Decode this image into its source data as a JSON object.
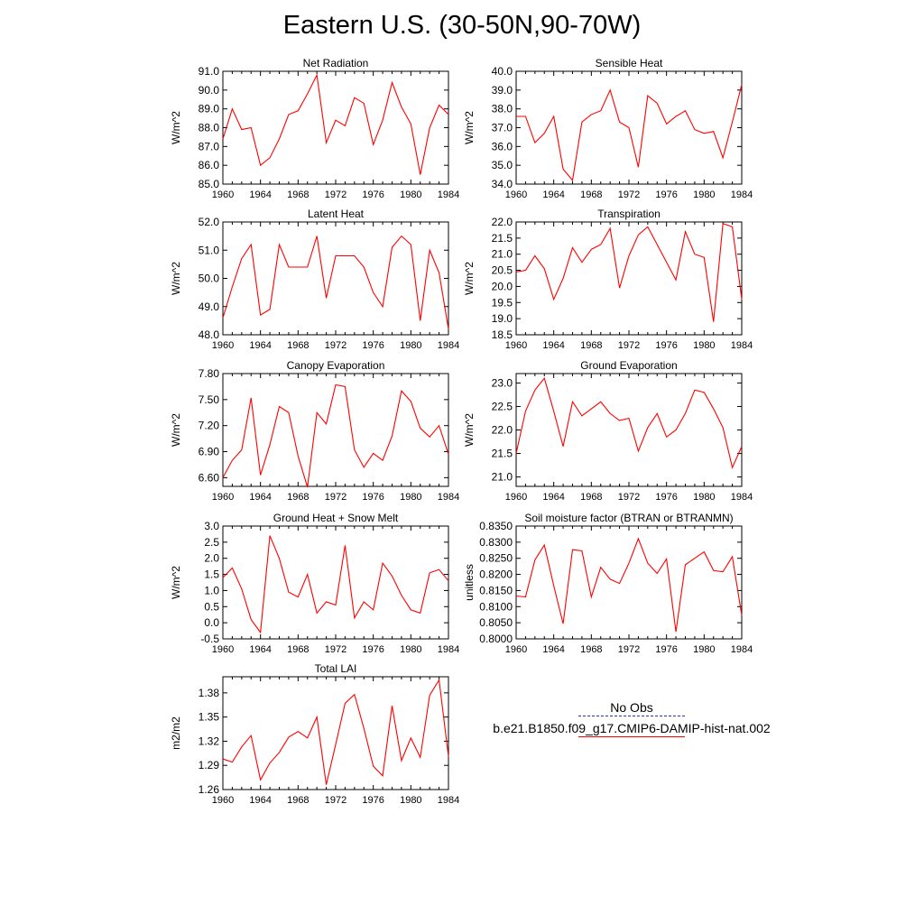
{
  "title": "Eastern U.S. (30-50N,90-70W)",
  "line_color": "#ff0000",
  "obs_color": "#2b2bd8",
  "legend": {
    "obs_label": "No Obs",
    "model_label": "b.e21.B1850.f09_g17.CMIP6-DAMIP-hist-nat.002"
  },
  "chart_data": [
    {
      "type": "line",
      "title": "Net Radiation",
      "ylabel": "W/m^2",
      "xlim": [
        1960,
        1984
      ],
      "ylim": [
        85.0,
        91.0
      ],
      "xticks": [
        "1960",
        "1964",
        "1968",
        "1972",
        "1976",
        "1980",
        "1984"
      ],
      "yticks": [
        "85.0",
        "86.0",
        "87.0",
        "88.0",
        "89.0",
        "90.0",
        "91.0"
      ],
      "series": [
        {
          "values": [
            87.4,
            89.0,
            87.9,
            88.0,
            86.0,
            86.4,
            87.4,
            88.7,
            88.9,
            89.8,
            90.8,
            87.2,
            88.4,
            88.1,
            89.6,
            89.3,
            87.1,
            88.4,
            90.4,
            89.1,
            88.2,
            85.5,
            88.0,
            89.2,
            88.7
          ]
        }
      ]
    },
    {
      "type": "line",
      "title": "Sensible Heat",
      "ylabel": "W/m^2",
      "xlim": [
        1960,
        1984
      ],
      "ylim": [
        34.0,
        40.0
      ],
      "xticks": [
        "1960",
        "1964",
        "1968",
        "1972",
        "1976",
        "1980",
        "1984"
      ],
      "yticks": [
        "34.0",
        "35.0",
        "36.0",
        "37.0",
        "38.0",
        "39.0",
        "40.0"
      ],
      "series": [
        {
          "values": [
            37.6,
            37.6,
            36.2,
            36.7,
            37.6,
            34.8,
            34.2,
            37.3,
            37.7,
            37.9,
            39.0,
            37.3,
            37.0,
            34.9,
            38.7,
            38.3,
            37.2,
            37.6,
            37.9,
            36.9,
            36.7,
            36.8,
            35.4,
            37.3,
            39.3
          ]
        }
      ]
    },
    {
      "type": "line",
      "title": "Latent Heat",
      "ylabel": "W/m^2",
      "xlim": [
        1960,
        1984
      ],
      "ylim": [
        48.0,
        52.0
      ],
      "xticks": [
        "1960",
        "1964",
        "1968",
        "1972",
        "1976",
        "1980",
        "1984"
      ],
      "yticks": [
        "48.0",
        "49.0",
        "50.0",
        "51.0",
        "52.0"
      ],
      "series": [
        {
          "values": [
            48.6,
            49.7,
            50.7,
            51.2,
            48.7,
            48.9,
            51.2,
            50.4,
            50.4,
            50.4,
            51.5,
            49.3,
            50.8,
            50.8,
            50.8,
            50.4,
            49.5,
            49.0,
            51.1,
            51.5,
            51.2,
            48.5,
            51.0,
            50.2,
            48.2
          ]
        }
      ]
    },
    {
      "type": "line",
      "title": "Transpiration",
      "ylabel": "W/m^2",
      "xlim": [
        1960,
        1984
      ],
      "ylim": [
        18.5,
        22.0
      ],
      "xticks": [
        "1960",
        "1964",
        "1968",
        "1972",
        "1976",
        "1980",
        "1984"
      ],
      "yticks": [
        "18.5",
        "19.0",
        "19.5",
        "20.0",
        "20.5",
        "21.0",
        "21.5",
        "22.0"
      ],
      "series": [
        {
          "values": [
            20.45,
            20.5,
            20.95,
            20.55,
            19.6,
            20.25,
            21.2,
            20.75,
            21.15,
            21.3,
            21.8,
            19.95,
            20.95,
            21.6,
            21.85,
            21.3,
            20.75,
            20.2,
            21.7,
            21.0,
            20.9,
            18.9,
            21.95,
            21.85,
            19.6
          ]
        }
      ]
    },
    {
      "type": "line",
      "title": "Canopy Evaporation",
      "ylabel": "W/m^2",
      "xlim": [
        1960,
        1984
      ],
      "ylim": [
        6.5,
        7.8
      ],
      "xticks": [
        "1960",
        "1964",
        "1968",
        "1972",
        "1976",
        "1980",
        "1984"
      ],
      "yticks": [
        "6.60",
        "6.90",
        "7.20",
        "7.50",
        "7.80"
      ],
      "series": [
        {
          "values": [
            6.6,
            6.8,
            6.92,
            7.52,
            6.63,
            6.98,
            7.42,
            7.35,
            6.85,
            6.49,
            7.35,
            7.22,
            7.67,
            7.65,
            6.92,
            6.72,
            6.88,
            6.8,
            7.08,
            7.6,
            7.48,
            7.17,
            7.07,
            7.2,
            6.87
          ]
        }
      ]
    },
    {
      "type": "line",
      "title": "Ground Evaporation",
      "ylabel": "W/m^2",
      "xlim": [
        1960,
        1984
      ],
      "ylim": [
        20.8,
        23.2
      ],
      "xticks": [
        "1960",
        "1964",
        "1968",
        "1972",
        "1976",
        "1980",
        "1984"
      ],
      "yticks": [
        "21.0",
        "21.5",
        "22.0",
        "22.5",
        "23.0"
      ],
      "series": [
        {
          "values": [
            21.5,
            22.4,
            22.85,
            23.1,
            22.4,
            21.65,
            22.6,
            22.3,
            22.45,
            22.6,
            22.35,
            22.2,
            22.25,
            21.55,
            22.05,
            22.35,
            21.85,
            22.0,
            22.35,
            22.85,
            22.8,
            22.45,
            22.05,
            21.2,
            21.65
          ]
        }
      ]
    },
    {
      "type": "line",
      "title": "Ground Heat + Snow Melt",
      "ylabel": "W/m^2",
      "xlim": [
        1960,
        1984
      ],
      "ylim": [
        -0.5,
        3.0
      ],
      "xticks": [
        "1960",
        "1964",
        "1968",
        "1972",
        "1976",
        "1980",
        "1984"
      ],
      "yticks": [
        "-0.5",
        "0.0",
        "0.5",
        "1.0",
        "1.5",
        "2.0",
        "2.5",
        "3.0"
      ],
      "series": [
        {
          "values": [
            1.4,
            1.7,
            1.05,
            0.1,
            -0.3,
            2.7,
            2.0,
            0.95,
            0.8,
            1.5,
            0.3,
            0.65,
            0.55,
            2.4,
            0.15,
            0.65,
            0.4,
            1.85,
            1.45,
            0.85,
            0.4,
            0.3,
            1.55,
            1.65,
            1.3
          ]
        }
      ]
    },
    {
      "type": "line",
      "title": "Soil moisture factor (BTRAN or BTRANMN)",
      "ylabel": "unitless",
      "xlim": [
        1960,
        1984
      ],
      "ylim": [
        0.8,
        0.835
      ],
      "xticks": [
        "1960",
        "1964",
        "1968",
        "1972",
        "1976",
        "1980",
        "1984"
      ],
      "yticks": [
        "0.8000",
        "0.8050",
        "0.8100",
        "0.8150",
        "0.8200",
        "0.8250",
        "0.8300",
        "0.8350"
      ],
      "series": [
        {
          "values": [
            0.8133,
            0.813,
            0.8245,
            0.8291,
            0.8165,
            0.8047,
            0.8277,
            0.8273,
            0.813,
            0.8222,
            0.8185,
            0.8172,
            0.8235,
            0.8311,
            0.8235,
            0.8203,
            0.8248,
            0.8022,
            0.823,
            0.825,
            0.827,
            0.8212,
            0.8208,
            0.8255,
            0.8073
          ]
        }
      ]
    },
    {
      "type": "line",
      "title": "Total LAI",
      "ylabel": "m2/m2",
      "xlim": [
        1960,
        1984
      ],
      "ylim": [
        1.26,
        1.4
      ],
      "xticks": [
        "1960",
        "1964",
        "1968",
        "1972",
        "1976",
        "1980",
        "1984"
      ],
      "yticks": [
        "1.26",
        "1.29",
        "1.32",
        "1.35",
        "1.38"
      ],
      "series": [
        {
          "values": [
            1.298,
            1.294,
            1.313,
            1.327,
            1.272,
            1.293,
            1.306,
            1.325,
            1.332,
            1.324,
            1.35,
            1.266,
            1.316,
            1.367,
            1.378,
            1.336,
            1.289,
            1.277,
            1.364,
            1.296,
            1.324,
            1.3,
            1.377,
            1.396,
            1.301
          ]
        }
      ]
    }
  ]
}
